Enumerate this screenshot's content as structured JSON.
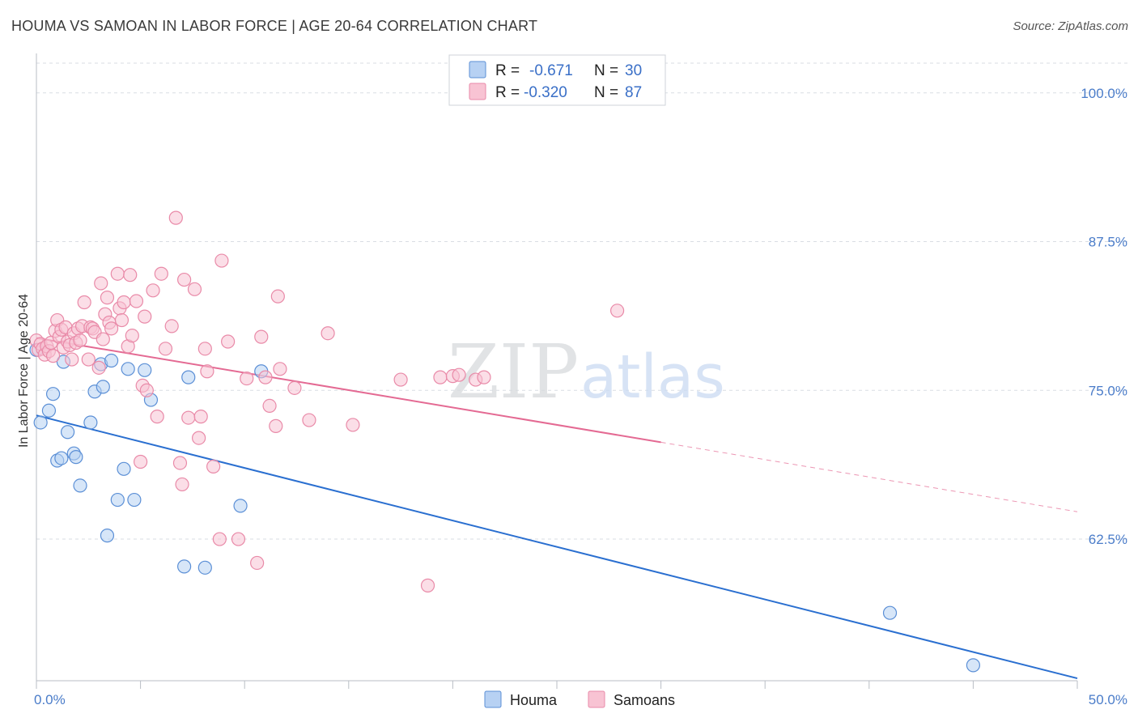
{
  "title": "HOUMA VS SAMOAN IN LABOR FORCE | AGE 20-64 CORRELATION CHART",
  "source": "Source: ZipAtlas.com",
  "watermark": {
    "zip": "ZIP",
    "atlas": "atlas"
  },
  "colors": {
    "houma_fill": "#b7d1f3",
    "houma_stroke": "#5b8fd6",
    "houma_line": "#2a6fd0",
    "samoan_fill": "#f8c3d3",
    "samoan_stroke": "#e98aa8",
    "samoan_line": "#e46a93",
    "grid": "#d9dde3",
    "tick_text": "#4a7cc9"
  },
  "legend": {
    "rows": [
      {
        "series": "houma",
        "r_label": "R =",
        "r_value": "-0.671",
        "n_label": "N =",
        "n_value": "30"
      },
      {
        "series": "samoan",
        "r_label": "R =",
        "r_value": "-0.320",
        "n_label": "N =",
        "n_value": "87"
      }
    ]
  },
  "bottom_legend": [
    "Houma",
    "Samoans"
  ],
  "chart_data": {
    "type": "scatter",
    "title": "HOUMA VS SAMOAN IN LABOR FORCE | AGE 20-64 CORRELATION CHART",
    "xlabel": "",
    "ylabel": "In Labor Force | Age 20-64",
    "xlim": [
      0,
      50
    ],
    "ylim": [
      50.6,
      102.5
    ],
    "x_tick_labels": [
      {
        "value": 0,
        "label": "0.0%"
      },
      {
        "value": 50,
        "label": "50.0%"
      }
    ],
    "y_tick_labels": [
      {
        "value": 100,
        "label": "100.0%"
      },
      {
        "value": 87.5,
        "label": "87.5%"
      },
      {
        "value": 75,
        "label": "75.0%"
      },
      {
        "value": 62.5,
        "label": "62.5%"
      }
    ],
    "x_minor_ticks": [
      5,
      10,
      15,
      20,
      25,
      30,
      35,
      40,
      45
    ],
    "grid": true,
    "series": [
      {
        "name": "Houma",
        "key": "houma",
        "r": -0.671,
        "n": 30,
        "trend": {
          "x0": 0,
          "y0": 72.9,
          "x1": 50,
          "y1": 50.8,
          "solid_until": 50
        },
        "points": [
          [
            0.2,
            72.3
          ],
          [
            0.6,
            73.3
          ],
          [
            0.8,
            74.7
          ],
          [
            1.0,
            69.1
          ],
          [
            1.2,
            69.3
          ],
          [
            1.3,
            77.4
          ],
          [
            1.5,
            71.5
          ],
          [
            1.8,
            69.7
          ],
          [
            1.9,
            69.4
          ],
          [
            2.1,
            67.0
          ],
          [
            2.6,
            72.3
          ],
          [
            2.8,
            74.9
          ],
          [
            3.1,
            77.2
          ],
          [
            3.2,
            75.3
          ],
          [
            3.4,
            62.8
          ],
          [
            3.6,
            77.5
          ],
          [
            3.9,
            65.8
          ],
          [
            4.2,
            68.4
          ],
          [
            4.4,
            76.8
          ],
          [
            4.7,
            65.8
          ],
          [
            5.2,
            76.7
          ],
          [
            5.5,
            74.2
          ],
          [
            7.1,
            60.2
          ],
          [
            7.3,
            76.1
          ],
          [
            8.1,
            60.1
          ],
          [
            9.8,
            65.3
          ],
          [
            10.8,
            76.6
          ],
          [
            41.0,
            56.3
          ],
          [
            45.0,
            51.9
          ],
          [
            0.0,
            78.4
          ]
        ]
      },
      {
        "name": "Samoans",
        "key": "samoan",
        "r": -0.32,
        "n": 87,
        "trend": {
          "x0": 0,
          "y0": 79.4,
          "x1": 50,
          "y1": 64.8,
          "solid_until": 30
        },
        "points": [
          [
            0.0,
            79.2
          ],
          [
            0.1,
            78.4
          ],
          [
            0.2,
            78.9
          ],
          [
            0.3,
            78.5
          ],
          [
            0.4,
            78.0
          ],
          [
            0.5,
            78.7
          ],
          [
            0.6,
            78.3
          ],
          [
            0.7,
            79.0
          ],
          [
            0.8,
            77.9
          ],
          [
            0.9,
            80.0
          ],
          [
            1.0,
            80.9
          ],
          [
            1.1,
            79.5
          ],
          [
            1.2,
            80.1
          ],
          [
            1.3,
            78.6
          ],
          [
            1.4,
            80.3
          ],
          [
            1.5,
            79.1
          ],
          [
            1.6,
            78.8
          ],
          [
            1.7,
            77.6
          ],
          [
            1.8,
            79.8
          ],
          [
            1.9,
            79.0
          ],
          [
            2.0,
            80.2
          ],
          [
            2.1,
            79.2
          ],
          [
            2.2,
            80.4
          ],
          [
            2.3,
            82.4
          ],
          [
            2.5,
            77.6
          ],
          [
            2.6,
            80.3
          ],
          [
            2.7,
            80.2
          ],
          [
            2.8,
            79.9
          ],
          [
            3.0,
            76.9
          ],
          [
            3.1,
            84.0
          ],
          [
            3.2,
            79.3
          ],
          [
            3.3,
            81.4
          ],
          [
            3.4,
            82.8
          ],
          [
            3.5,
            80.7
          ],
          [
            3.6,
            80.2
          ],
          [
            3.9,
            84.8
          ],
          [
            4.0,
            81.9
          ],
          [
            4.1,
            80.9
          ],
          [
            4.2,
            82.4
          ],
          [
            4.4,
            78.7
          ],
          [
            4.5,
            84.7
          ],
          [
            4.6,
            79.6
          ],
          [
            4.8,
            82.5
          ],
          [
            5.0,
            69.0
          ],
          [
            5.1,
            75.4
          ],
          [
            5.2,
            81.2
          ],
          [
            5.3,
            75.0
          ],
          [
            5.6,
            83.4
          ],
          [
            5.8,
            72.8
          ],
          [
            6.0,
            84.8
          ],
          [
            6.2,
            78.5
          ],
          [
            6.5,
            80.4
          ],
          [
            6.7,
            89.5
          ],
          [
            6.9,
            68.9
          ],
          [
            7.0,
            67.1
          ],
          [
            7.1,
            84.3
          ],
          [
            7.3,
            72.7
          ],
          [
            7.6,
            83.5
          ],
          [
            7.8,
            71.0
          ],
          [
            7.9,
            72.8
          ],
          [
            8.1,
            78.5
          ],
          [
            8.2,
            76.6
          ],
          [
            8.5,
            68.6
          ],
          [
            8.8,
            62.5
          ],
          [
            8.9,
            85.9
          ],
          [
            9.2,
            79.1
          ],
          [
            9.7,
            62.5
          ],
          [
            10.1,
            76.0
          ],
          [
            10.6,
            60.5
          ],
          [
            10.8,
            79.5
          ],
          [
            11.0,
            76.1
          ],
          [
            11.2,
            73.7
          ],
          [
            11.5,
            72.0
          ],
          [
            11.6,
            82.9
          ],
          [
            11.7,
            76.8
          ],
          [
            12.4,
            75.2
          ],
          [
            13.1,
            72.5
          ],
          [
            14.0,
            79.8
          ],
          [
            15.2,
            72.1
          ],
          [
            17.5,
            75.9
          ],
          [
            18.8,
            58.6
          ],
          [
            19.4,
            76.1
          ],
          [
            20.0,
            76.2
          ],
          [
            20.3,
            76.3
          ],
          [
            21.1,
            75.9
          ],
          [
            21.5,
            76.1
          ],
          [
            27.9,
            81.7
          ]
        ]
      }
    ]
  }
}
